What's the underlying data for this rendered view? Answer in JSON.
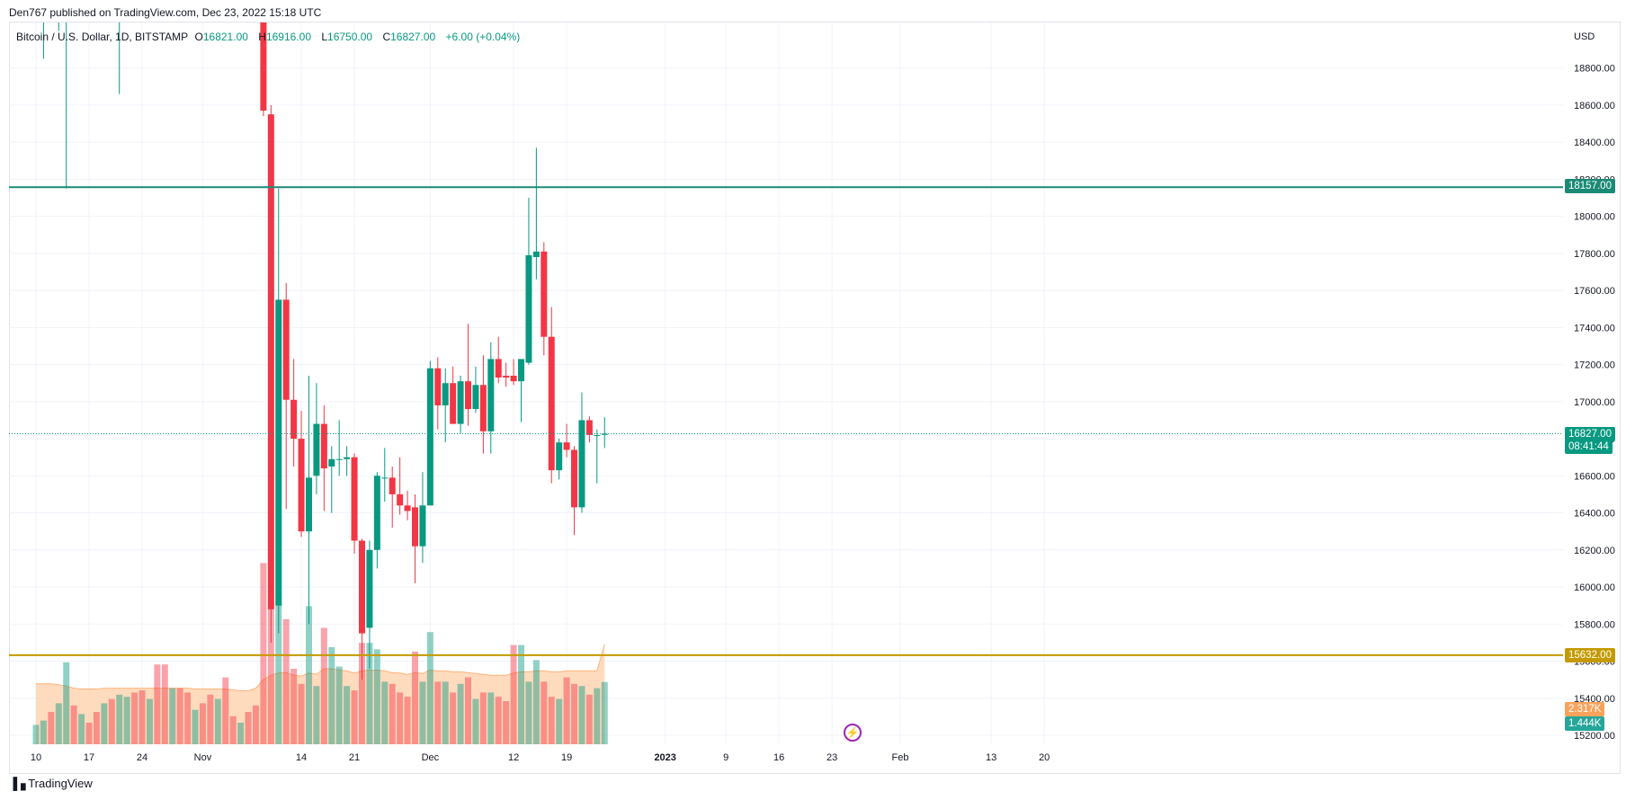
{
  "publisher": "Den767 published on TradingView.com, Dec 23, 2022 15:18 UTC",
  "legend": {
    "symbol": "Bitcoin / U.S. Dollar, 1D, BITSTAMP",
    "open": "16821.00",
    "high": "16916.00",
    "low": "16750.00",
    "close": "16827.00",
    "change": "+6.00 (+0.04%)"
  },
  "currency": "USD",
  "price_tags": {
    "resistance": "18157.00",
    "support": "15632.00",
    "last_price": "16827.00",
    "countdown": "08:41:44",
    "volume_ma": "2.317K",
    "volume": "1.444K"
  },
  "footer": {
    "logo": "TradingView"
  },
  "colors": {
    "up": "#089981",
    "down": "#f23645",
    "resistance": "#1b8a75",
    "support": "#c49a00",
    "grid": "#f0f3fa",
    "volume_ma_fill": "#ffcfa8",
    "volume_ma_line": "#ffb27a"
  },
  "icons": {
    "indicator": "bolt-icon",
    "logo": "tradingview-logo-icon"
  },
  "chart_data": {
    "type": "candlestick",
    "title": "Bitcoin / U.S. Dollar, 1D, BITSTAMP",
    "ylabel": "USD",
    "ylim": [
      15150,
      19050
    ],
    "y_ticks": [
      15200,
      15400,
      15600,
      15800,
      16000,
      16200,
      16400,
      16600,
      16800,
      17000,
      17200,
      17400,
      17600,
      17800,
      18000,
      18200,
      18400,
      18600,
      18800
    ],
    "x_ticks": [
      {
        "label": "10",
        "day": 0
      },
      {
        "label": "17",
        "day": 7
      },
      {
        "label": "24",
        "day": 14
      },
      {
        "label": "Nov",
        "day": 22
      },
      {
        "label": "14",
        "day": 35
      },
      {
        "label": "21",
        "day": 42
      },
      {
        "label": "Dec",
        "day": 52
      },
      {
        "label": "12",
        "day": 63
      },
      {
        "label": "19",
        "day": 70
      },
      {
        "label": "2023",
        "day": 83
      },
      {
        "label": "9",
        "day": 91
      },
      {
        "label": "16",
        "day": 98
      },
      {
        "label": "23",
        "day": 105
      },
      {
        "label": "Feb",
        "day": 114
      },
      {
        "label": "13",
        "day": 126
      },
      {
        "label": "20",
        "day": 133
      }
    ],
    "horizontal_lines": [
      {
        "name": "resistance",
        "value": 18157
      },
      {
        "name": "support",
        "value": 15632
      }
    ],
    "grid": true,
    "candles": [
      {
        "d": 1,
        "o": 19100,
        "h": 19200,
        "l": 18850,
        "c": 19100
      },
      {
        "d": 3,
        "o": 19100,
        "h": 19200,
        "l": 19000,
        "c": 19100
      },
      {
        "d": 4,
        "o": 19100,
        "h": 19200,
        "l": 18150,
        "c": 19100
      },
      {
        "d": 11,
        "o": 19100,
        "h": 19200,
        "l": 18660,
        "c": 19100
      },
      {
        "d": 30,
        "o": 19100,
        "h": 19200,
        "l": 18540,
        "c": 18570
      },
      {
        "d": 31,
        "o": 18550,
        "h": 18600,
        "l": 15700,
        "c": 15880
      },
      {
        "d": 32,
        "o": 15900,
        "h": 18150,
        "l": 15750,
        "c": 17550
      },
      {
        "d": 33,
        "o": 17550,
        "h": 17640,
        "l": 16420,
        "c": 17010
      },
      {
        "d": 34,
        "o": 17010,
        "h": 17230,
        "l": 16650,
        "c": 16800
      },
      {
        "d": 35,
        "o": 16800,
        "h": 16950,
        "l": 16270,
        "c": 16300
      },
      {
        "d": 36,
        "o": 16300,
        "h": 17140,
        "l": 15800,
        "c": 16590
      },
      {
        "d": 37,
        "o": 16600,
        "h": 17100,
        "l": 16500,
        "c": 16880
      },
      {
        "d": 38,
        "o": 16880,
        "h": 16980,
        "l": 16410,
        "c": 16640
      },
      {
        "d": 39,
        "o": 16650,
        "h": 16760,
        "l": 16400,
        "c": 16690
      },
      {
        "d": 40,
        "o": 16690,
        "h": 16900,
        "l": 16600,
        "c": 16690
      },
      {
        "d": 41,
        "o": 16690,
        "h": 16760,
        "l": 16600,
        "c": 16700
      },
      {
        "d": 42,
        "o": 16700,
        "h": 16720,
        "l": 16180,
        "c": 16250
      },
      {
        "d": 43,
        "o": 16250,
        "h": 16260,
        "l": 15500,
        "c": 15750
      },
      {
        "d": 44,
        "o": 15780,
        "h": 16250,
        "l": 15560,
        "c": 16200
      },
      {
        "d": 45,
        "o": 16200,
        "h": 16620,
        "l": 16100,
        "c": 16600
      },
      {
        "d": 46,
        "o": 16590,
        "h": 16750,
        "l": 16460,
        "c": 16590
      },
      {
        "d": 47,
        "o": 16590,
        "h": 16650,
        "l": 16320,
        "c": 16500
      },
      {
        "d": 48,
        "o": 16500,
        "h": 16700,
        "l": 16390,
        "c": 16440
      },
      {
        "d": 49,
        "o": 16440,
        "h": 16520,
        "l": 16360,
        "c": 16410
      },
      {
        "d": 50,
        "o": 16430,
        "h": 16500,
        "l": 16020,
        "c": 16220
      },
      {
        "d": 51,
        "o": 16220,
        "h": 16620,
        "l": 16130,
        "c": 16440
      },
      {
        "d": 52,
        "o": 16440,
        "h": 17220,
        "l": 16440,
        "c": 17180
      },
      {
        "d": 53,
        "o": 17180,
        "h": 17240,
        "l": 16850,
        "c": 16980
      },
      {
        "d": 54,
        "o": 16980,
        "h": 17180,
        "l": 16780,
        "c": 17100
      },
      {
        "d": 55,
        "o": 17100,
        "h": 17190,
        "l": 16880,
        "c": 16880
      },
      {
        "d": 56,
        "o": 16880,
        "h": 17140,
        "l": 16830,
        "c": 17110
      },
      {
        "d": 57,
        "o": 17110,
        "h": 17420,
        "l": 16870,
        "c": 16960
      },
      {
        "d": 58,
        "o": 16960,
        "h": 17190,
        "l": 16940,
        "c": 17090
      },
      {
        "d": 59,
        "o": 17090,
        "h": 17250,
        "l": 16720,
        "c": 16840
      },
      {
        "d": 60,
        "o": 16840,
        "h": 17320,
        "l": 16720,
        "c": 17230
      },
      {
        "d": 61,
        "o": 17230,
        "h": 17350,
        "l": 17100,
        "c": 17130
      },
      {
        "d": 62,
        "o": 17140,
        "h": 17210,
        "l": 17080,
        "c": 17130
      },
      {
        "d": 63,
        "o": 17140,
        "h": 17230,
        "l": 17090,
        "c": 17110
      },
      {
        "d": 64,
        "o": 17110,
        "h": 17220,
        "l": 16890,
        "c": 17230
      },
      {
        "d": 65,
        "o": 17210,
        "h": 18100,
        "l": 17200,
        "c": 17790
      },
      {
        "d": 66,
        "o": 17780,
        "h": 18370,
        "l": 17660,
        "c": 17810
      },
      {
        "d": 67,
        "o": 17810,
        "h": 17860,
        "l": 17250,
        "c": 17350
      },
      {
        "d": 68,
        "o": 17350,
        "h": 17510,
        "l": 16560,
        "c": 16630
      },
      {
        "d": 69,
        "o": 16630,
        "h": 16800,
        "l": 16580,
        "c": 16780
      },
      {
        "d": 70,
        "o": 16780,
        "h": 16880,
        "l": 16700,
        "c": 16740
      },
      {
        "d": 71,
        "o": 16740,
        "h": 16760,
        "l": 16280,
        "c": 16430
      },
      {
        "d": 72,
        "o": 16430,
        "h": 17050,
        "l": 16400,
        "c": 16900
      },
      {
        "d": 73,
        "o": 16900,
        "h": 16920,
        "l": 16780,
        "c": 16820
      },
      {
        "d": 74,
        "o": 16820,
        "h": 16850,
        "l": 16560,
        "c": 16820
      },
      {
        "d": 75,
        "o": 16821,
        "h": 16916,
        "l": 16750,
        "c": 16827
      }
    ],
    "volume_series": {
      "name": "Volume",
      "days": [
        0,
        1,
        2,
        3,
        4,
        5,
        6,
        7,
        8,
        9,
        10,
        11,
        12,
        13,
        14,
        15,
        16,
        17,
        18,
        19,
        20,
        21,
        22,
        23,
        24,
        25,
        26,
        27,
        28,
        29,
        30,
        31,
        32,
        33,
        34,
        35,
        36,
        37,
        38,
        39,
        40,
        41,
        42,
        43,
        44,
        45,
        46,
        47,
        48,
        49,
        50,
        51,
        52,
        53,
        54,
        55,
        56,
        57,
        58,
        59,
        60,
        61,
        62,
        63,
        64,
        65,
        66,
        67,
        68,
        69,
        70,
        71,
        72,
        73,
        74,
        75
      ],
      "values": [
        0.45,
        0.55,
        0.75,
        0.95,
        1.9,
        0.9,
        0.7,
        0.5,
        0.75,
        0.95,
        1.05,
        1.15,
        1.1,
        1.2,
        1.25,
        1.05,
        1.85,
        1.85,
        1.3,
        1.3,
        1.2,
        0.8,
        0.95,
        1.15,
        1.05,
        1.55,
        0.65,
        0.5,
        0.75,
        0.9,
        4.2,
        3.3,
        3.3,
        2.9,
        1.75,
        1.4,
        3.2,
        1.35,
        2.7,
        2.25,
        1.8,
        1.35,
        1.25,
        2.35,
        2.35,
        2.2,
        1.45,
        1.4,
        1.2,
        1.1,
        2.15,
        1.45,
        2.6,
        1.45,
        1.45,
        1.2,
        1.4,
        1.55,
        1.05,
        1.2,
        1.2,
        1.1,
        1.0,
        2.3,
        2.3,
        1.45,
        1.95,
        1.45,
        1.1,
        1.05,
        1.55,
        1.4,
        1.35,
        1.15,
        1.3,
        1.444
      ],
      "ma_values": [
        1.4,
        1.4,
        1.4,
        1.38,
        1.35,
        1.3,
        1.28,
        1.28,
        1.28,
        1.3,
        1.3,
        1.3,
        1.3,
        1.3,
        1.3,
        1.3,
        1.3,
        1.3,
        1.3,
        1.3,
        1.3,
        1.28,
        1.28,
        1.28,
        1.28,
        1.28,
        1.26,
        1.24,
        1.24,
        1.3,
        1.5,
        1.6,
        1.65,
        1.66,
        1.6,
        1.58,
        1.65,
        1.62,
        1.75,
        1.75,
        1.72,
        1.7,
        1.65,
        1.7,
        1.72,
        1.72,
        1.7,
        1.66,
        1.65,
        1.62,
        1.66,
        1.64,
        1.72,
        1.7,
        1.7,
        1.68,
        1.68,
        1.66,
        1.64,
        1.62,
        1.6,
        1.6,
        1.6,
        1.65,
        1.68,
        1.68,
        1.7,
        1.7,
        1.68,
        1.68,
        1.7,
        1.7,
        1.7,
        1.7,
        1.7,
        2.317
      ],
      "unit": "K"
    }
  }
}
